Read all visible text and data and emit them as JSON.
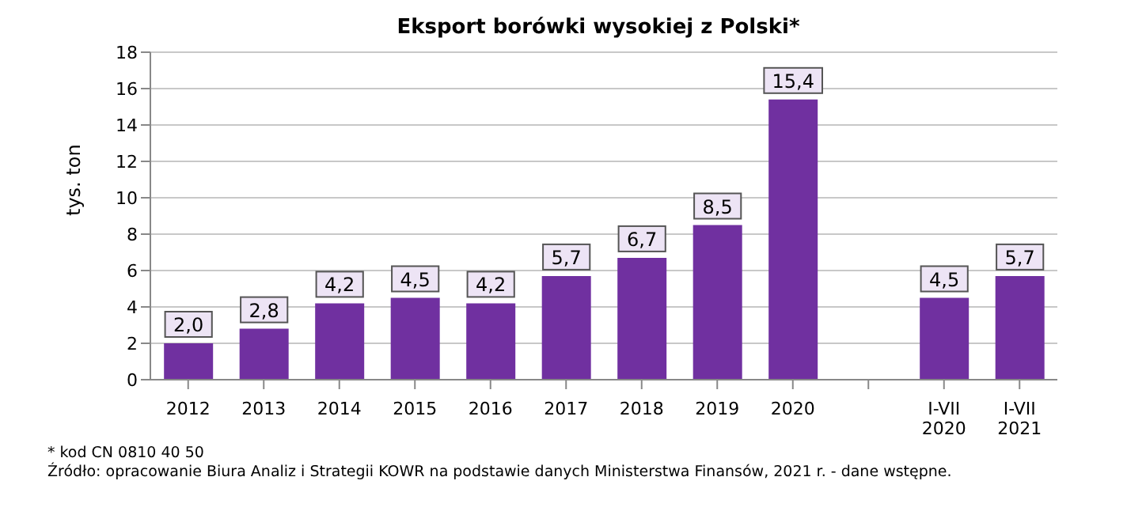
{
  "chart_data": {
    "type": "bar",
    "title": "Eksport borówki wysokiej z Polski*",
    "ylabel": "tys. ton",
    "categories": [
      "2012",
      "2013",
      "2014",
      "2015",
      "2016",
      "2017",
      "2018",
      "2019",
      "2020",
      null,
      "I-VII 2020",
      "I-VII 2021"
    ],
    "values": [
      2.0,
      2.8,
      4.2,
      4.5,
      4.2,
      5.7,
      6.7,
      8.5,
      15.4,
      null,
      4.5,
      5.7
    ],
    "value_labels": [
      "2,0",
      "2,8",
      "4,2",
      "4,5",
      "4,2",
      "5,7",
      "6,7",
      "8,5",
      "15,4",
      null,
      "4,5",
      "5,7"
    ],
    "color": "#7030a0",
    "ylim": [
      0,
      18
    ],
    "yticks": [
      0,
      2,
      4,
      6,
      8,
      10,
      12,
      14,
      16,
      18
    ],
    "grid": "y",
    "legend": false,
    "annotations": [
      "* kod CN 0810 40 50",
      "Źródło: opracowanie Biura Analiz i Strategii KOWR na podstawie danych Ministerstwa Finansów, 2021 r. -  dane wstępne."
    ]
  }
}
